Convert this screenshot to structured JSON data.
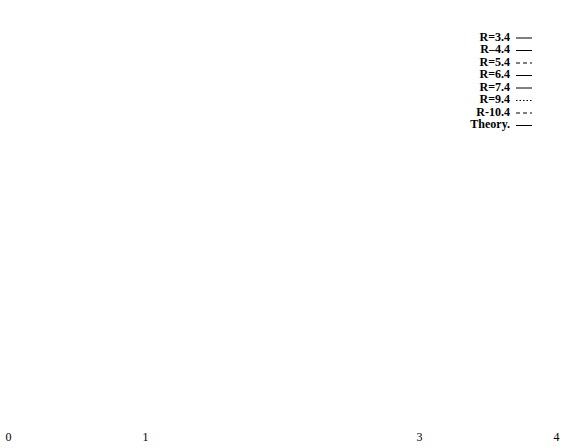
{
  "chart_data": {
    "type": "line",
    "x": [],
    "xlim": [
      0,
      4
    ],
    "xticks": [
      0,
      1,
      3,
      4
    ],
    "legend": "top-right",
    "series": [
      {
        "name": "R=3.4",
        "color": "#000000",
        "line_style": "solid",
        "values": []
      },
      {
        "name": "R–4.4",
        "color": "#000000",
        "line_style": "solid",
        "values": []
      },
      {
        "name": "R=5.4",
        "color": "#000000",
        "line_style": "dashed",
        "values": []
      },
      {
        "name": "R=6.4",
        "color": "#000000",
        "line_style": "solid",
        "values": []
      },
      {
        "name": "R=7.4",
        "color": "#000000",
        "line_style": "solid",
        "values": []
      },
      {
        "name": "R=9.4",
        "color": "#000000",
        "line_style": "dotted",
        "values": []
      },
      {
        "name": "R-10.4",
        "color": "#000000",
        "line_style": "dashed",
        "values": []
      },
      {
        "name": "Theory.",
        "color": "#000000",
        "line_style": "solid",
        "values": []
      }
    ]
  }
}
